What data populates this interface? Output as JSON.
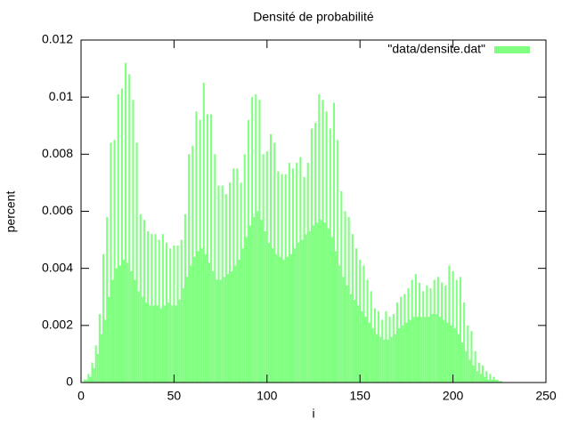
{
  "chart_data": {
    "type": "bar",
    "title": "Densité de probabilité",
    "x_label": "i",
    "y_label": "percent",
    "xlim": [
      0,
      250
    ],
    "xticks": [
      0,
      50,
      100,
      150,
      200,
      250
    ],
    "ylim": [
      0,
      0.012
    ],
    "yticks": [
      0,
      0.002,
      0.004,
      0.006,
      0.008,
      0.01,
      0.012
    ],
    "legend": "top-right",
    "x": [
      0,
      1,
      2,
      3,
      4,
      5,
      6,
      7,
      8,
      9,
      10,
      11,
      12,
      13,
      14,
      15,
      16,
      17,
      18,
      19,
      20,
      21,
      22,
      23,
      24,
      25,
      26,
      27,
      28,
      29,
      30,
      31,
      32,
      33,
      34,
      35,
      36,
      37,
      38,
      39,
      40,
      41,
      42,
      43,
      44,
      45,
      46,
      47,
      48,
      49,
      50,
      51,
      52,
      53,
      54,
      55,
      56,
      57,
      58,
      59,
      60,
      61,
      62,
      63,
      64,
      65,
      66,
      67,
      68,
      69,
      70,
      71,
      72,
      73,
      74,
      75,
      76,
      77,
      78,
      79,
      80,
      81,
      82,
      83,
      84,
      85,
      86,
      87,
      88,
      89,
      90,
      91,
      92,
      93,
      94,
      95,
      96,
      97,
      98,
      99,
      100,
      101,
      102,
      103,
      104,
      105,
      106,
      107,
      108,
      109,
      110,
      111,
      112,
      113,
      114,
      115,
      116,
      117,
      118,
      119,
      120,
      121,
      122,
      123,
      124,
      125,
      126,
      127,
      128,
      129,
      130,
      131,
      132,
      133,
      134,
      135,
      136,
      137,
      138,
      139,
      140,
      141,
      142,
      143,
      144,
      145,
      146,
      147,
      148,
      149,
      150,
      151,
      152,
      153,
      154,
      155,
      156,
      157,
      158,
      159,
      160,
      161,
      162,
      163,
      164,
      165,
      166,
      167,
      168,
      169,
      170,
      171,
      172,
      173,
      174,
      175,
      176,
      177,
      178,
      179,
      180,
      181,
      182,
      183,
      184,
      185,
      186,
      187,
      188,
      189,
      190,
      191,
      192,
      193,
      194,
      195,
      196,
      197,
      198,
      199,
      200,
      201,
      202,
      203,
      204,
      205,
      206,
      207,
      208,
      209,
      210,
      211,
      212,
      213,
      214,
      215,
      216,
      217,
      218,
      219,
      220,
      221,
      222,
      223,
      224,
      225,
      226,
      227
    ],
    "series": [
      {
        "name": "\"data/densite.dat\"",
        "color": "#80ff80",
        "values": [
          0,
          0,
          0.0001,
          0.0001,
          0.0003,
          0.0002,
          0.0007,
          0.0005,
          0.0013,
          0.001,
          0.0024,
          0.0017,
          0.0045,
          0.0022,
          0.0058,
          0.003,
          0.0084,
          0.0036,
          0.0085,
          0.004,
          0.0101,
          0.0041,
          0.0103,
          0.0043,
          0.0112,
          0.0042,
          0.0108,
          0.0039,
          0.0099,
          0.0036,
          0.0084,
          0.0032,
          0.0059,
          0.003,
          0.0057,
          0.0028,
          0.0053,
          0.0027,
          0.0052,
          0.0027,
          0.0052,
          0.0027,
          0.005,
          0.0026,
          0.0052,
          0.0027,
          0.0049,
          0.0028,
          0.0047,
          0.0027,
          0.0048,
          0.0027,
          0.0048,
          0.0029,
          0.005,
          0.0033,
          0.0059,
          0.0037,
          0.008,
          0.0041,
          0.0083,
          0.0044,
          0.0095,
          0.0046,
          0.0092,
          0.0047,
          0.0105,
          0.0045,
          0.0094,
          0.0042,
          0.0094,
          0.0039,
          0.008,
          0.0036,
          0.0069,
          0.0036,
          0.0069,
          0.0037,
          0.0066,
          0.0038,
          0.007,
          0.0039,
          0.0075,
          0.0041,
          0.0075,
          0.0043,
          0.007,
          0.0047,
          0.008,
          0.0051,
          0.0092,
          0.0055,
          0.01,
          0.0058,
          0.0101,
          0.006,
          0.0099,
          0.0057,
          0.008,
          0.0053,
          0.0081,
          0.0049,
          0.0087,
          0.0047,
          0.0084,
          0.0045,
          0.0074,
          0.0044,
          0.0073,
          0.0043,
          0.0073,
          0.0044,
          0.0077,
          0.0045,
          0.0075,
          0.0047,
          0.0077,
          0.0049,
          0.0079,
          0.005,
          0.0072,
          0.0052,
          0.0077,
          0.0053,
          0.0089,
          0.0055,
          0.0091,
          0.0056,
          0.0101,
          0.0057,
          0.0099,
          0.0056,
          0.0095,
          0.0054,
          0.0089,
          0.0051,
          0.0098,
          0.0046,
          0.0085,
          0.0041,
          0.0067,
          0.0037,
          0.006,
          0.0034,
          0.0058,
          0.0031,
          0.0052,
          0.0029,
          0.0047,
          0.0027,
          0.0043,
          0.0025,
          0.0041,
          0.0023,
          0.0036,
          0.0021,
          0.0032,
          0.0019,
          0.0026,
          0.0017,
          0.0025,
          0.0016,
          0.0022,
          0.0015,
          0.0025,
          0.0015,
          0.0023,
          0.0016,
          0.0024,
          0.0017,
          0.0028,
          0.0019,
          0.003,
          0.002,
          0.0031,
          0.0021,
          0.0033,
          0.0022,
          0.0036,
          0.0023,
          0.0038,
          0.0023,
          0.0035,
          0.0023,
          0.0032,
          0.0023,
          0.0034,
          0.0023,
          0.0033,
          0.0024,
          0.0036,
          0.0024,
          0.0037,
          0.0023,
          0.0035,
          0.0022,
          0.0034,
          0.0021,
          0.0041,
          0.002,
          0.0039,
          0.0019,
          0.0036,
          0.0017,
          0.0037,
          0.0014,
          0.0028,
          0.0011,
          0.002,
          0.0008,
          0.0018,
          0.0006,
          0.0011,
          0.0004,
          0.0007,
          0.0003,
          0.0006,
          0.0002,
          0.0004,
          0.0001,
          0.0003,
          0.0001,
          0.0002,
          0.0001,
          0.0001,
          5e-05,
          5e-05,
          0
        ]
      }
    ]
  }
}
